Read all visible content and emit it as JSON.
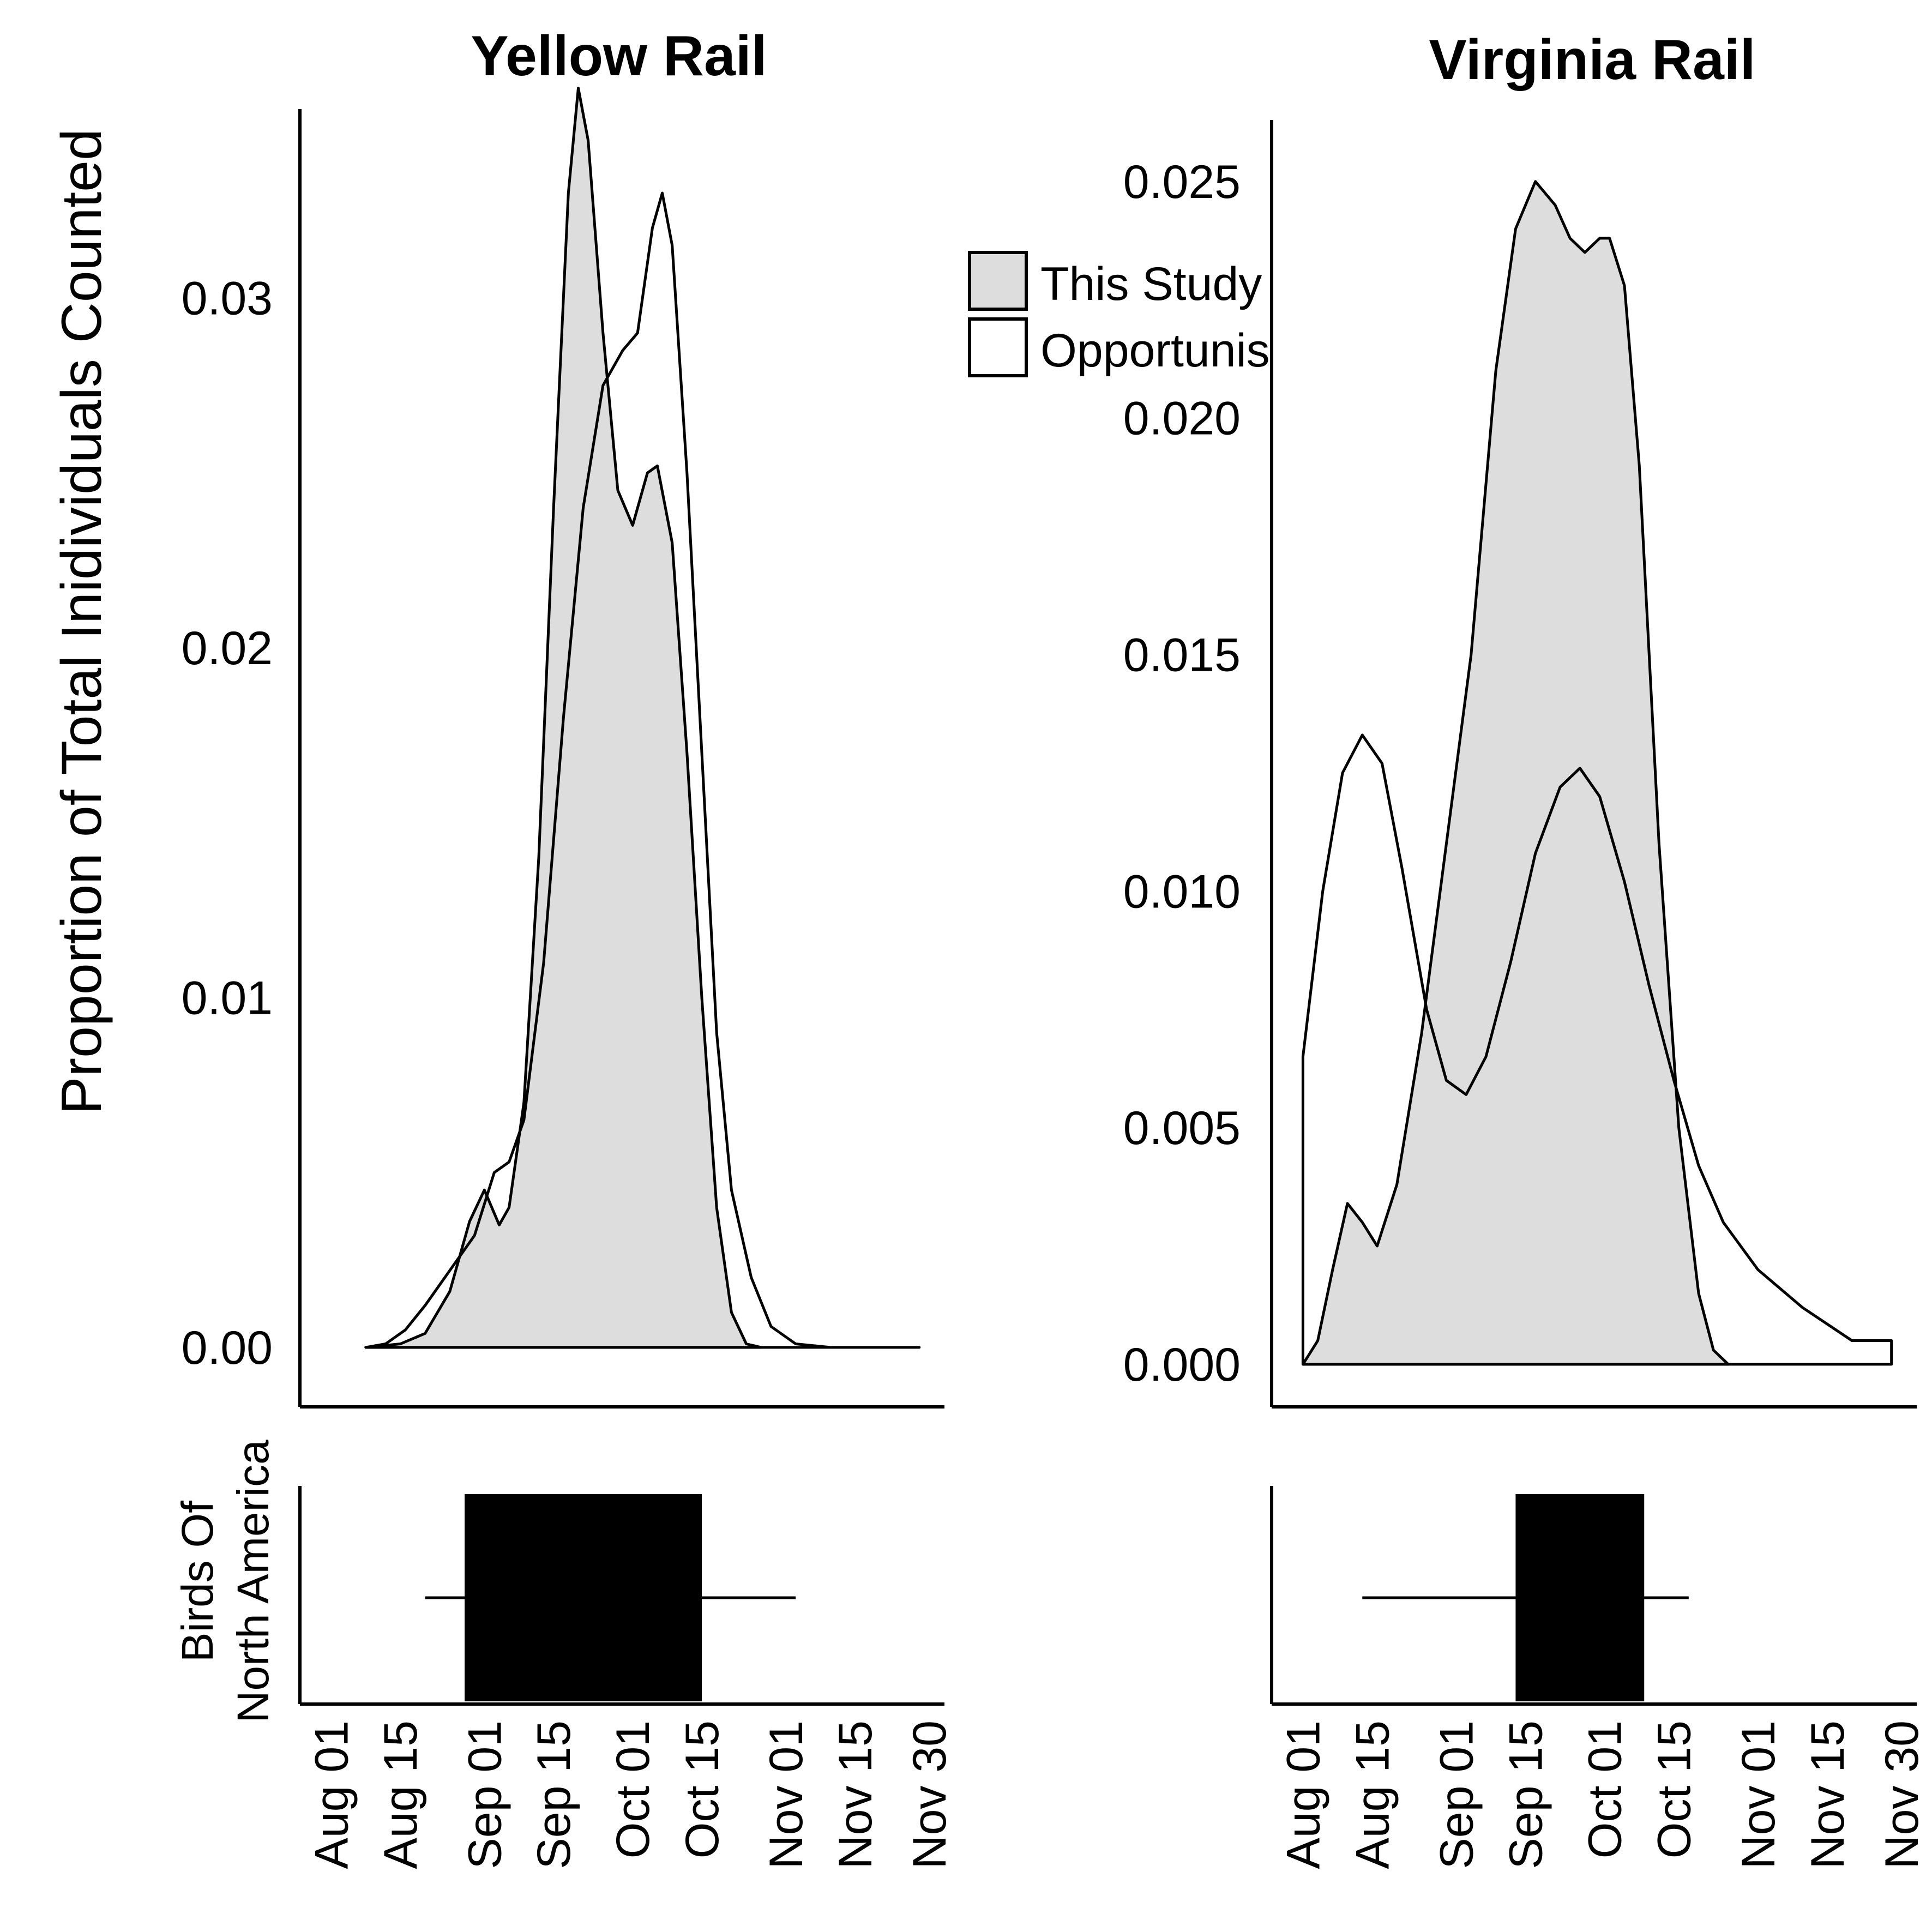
{
  "y_axis_label": "Proportion of Total Inidividuals Counted",
  "box_axis_label_line1": "Birds Of",
  "box_axis_label_line2": "North America",
  "legend": [
    {
      "label": "This Study",
      "fill": "#dddddd"
    },
    {
      "label": "Opportunistic",
      "fill": "#ffffff"
    }
  ],
  "colors": {
    "this_study_fill": "#dddddd",
    "opportunistic_fill": "#ffffff",
    "line": "#000000",
    "box": "#000000"
  },
  "x_tick_labels": [
    "Aug 01",
    "Aug 15",
    "Sep 01",
    "Sep 15",
    "Oct 01",
    "Oct 15",
    "Nov 01",
    "Nov 15",
    "Nov 30"
  ],
  "chart_data": [
    {
      "type": "area",
      "title": "Yellow Rail",
      "ylim": [
        -0.0017,
        0.0354
      ],
      "y_ticks": [
        "0.00",
        "0.01",
        "0.02",
        "0.03"
      ],
      "y_tick_values": [
        0,
        0.01,
        0.02,
        0.03
      ],
      "xlim": [
        "2000-07-26",
        "2000-12-02"
      ],
      "x_ticks": [
        "2000-08-01",
        "2000-08-15",
        "2000-09-01",
        "2000-09-15",
        "2000-10-01",
        "2000-10-15",
        "2000-11-01",
        "2000-11-15",
        "2000-11-30"
      ],
      "series": [
        {
          "name": "This Study",
          "fill": "#dddddd",
          "points": [
            [
              "2000-08-08",
              0
            ],
            [
              "2000-08-15",
              0.0001
            ],
            [
              "2000-08-20",
              0.0004
            ],
            [
              "2000-08-25",
              0.0016
            ],
            [
              "2000-08-29",
              0.0036
            ],
            [
              "2000-09-01",
              0.0045
            ],
            [
              "2000-09-04",
              0.0035
            ],
            [
              "2000-09-06",
              0.004
            ],
            [
              "2000-09-09",
              0.007
            ],
            [
              "2000-09-12",
              0.014
            ],
            [
              "2000-09-15",
              0.024
            ],
            [
              "2000-09-18",
              0.033
            ],
            [
              "2000-09-20",
              0.036
            ],
            [
              "2000-09-22",
              0.0345
            ],
            [
              "2000-09-25",
              0.029
            ],
            [
              "2000-09-28",
              0.0245
            ],
            [
              "2000-10-01",
              0.0235
            ],
            [
              "2000-10-04",
              0.025
            ],
            [
              "2000-10-06",
              0.0252
            ],
            [
              "2000-10-09",
              0.023
            ],
            [
              "2000-10-12",
              0.017
            ],
            [
              "2000-10-15",
              0.01
            ],
            [
              "2000-10-18",
              0.004
            ],
            [
              "2000-10-21",
              0.001
            ],
            [
              "2000-10-24",
              0.0001
            ],
            [
              "2000-10-27",
              0
            ]
          ]
        },
        {
          "name": "Opportunistic",
          "fill": "#ffffff",
          "points": [
            [
              "2000-08-08",
              0
            ],
            [
              "2000-08-12",
              0.0001
            ],
            [
              "2000-08-16",
              0.0005
            ],
            [
              "2000-08-20",
              0.0012
            ],
            [
              "2000-08-25",
              0.0022
            ],
            [
              "2000-08-30",
              0.0032
            ],
            [
              "2000-09-03",
              0.005
            ],
            [
              "2000-09-06",
              0.0053
            ],
            [
              "2000-09-09",
              0.0065
            ],
            [
              "2000-09-13",
              0.011
            ],
            [
              "2000-09-17",
              0.018
            ],
            [
              "2000-09-21",
              0.024
            ],
            [
              "2000-09-25",
              0.0275
            ],
            [
              "2000-09-29",
              0.0285
            ],
            [
              "2000-10-02",
              0.029
            ],
            [
              "2000-10-05",
              0.032
            ],
            [
              "2000-10-07",
              0.033
            ],
            [
              "2000-10-09",
              0.0315
            ],
            [
              "2000-10-12",
              0.025
            ],
            [
              "2000-10-15",
              0.017
            ],
            [
              "2000-10-18",
              0.009
            ],
            [
              "2000-10-21",
              0.0045
            ],
            [
              "2000-10-25",
              0.002
            ],
            [
              "2000-10-29",
              0.0006
            ],
            [
              "2000-11-03",
              0.0001
            ],
            [
              "2000-11-10",
              0
            ],
            [
              "2000-11-28",
              0
            ]
          ]
        }
      ],
      "birds_of_north_america": {
        "whisker_low": "2000-08-20",
        "box_low": "2000-08-28",
        "box_high": "2000-10-15",
        "whisker_high": "2000-11-03"
      }
    },
    {
      "type": "area",
      "title": "Virginia Rail",
      "ylim": [
        -0.0009,
        0.0263
      ],
      "y_ticks": [
        "0.000",
        "0.005",
        "0.010",
        "0.015",
        "0.020",
        "0.025"
      ],
      "y_tick_values": [
        0,
        0.005,
        0.01,
        0.015,
        0.02,
        0.025
      ],
      "xlim": [
        "2000-07-26",
        "2000-12-02"
      ],
      "x_ticks": [
        "2000-08-01",
        "2000-08-15",
        "2000-09-01",
        "2000-09-15",
        "2000-10-01",
        "2000-10-15",
        "2000-11-01",
        "2000-11-15",
        "2000-11-30"
      ],
      "series": [
        {
          "name": "This Study",
          "fill": "#dddddd",
          "points": [
            [
              "2000-08-01",
              0
            ],
            [
              "2000-08-04",
              0.0005
            ],
            [
              "2000-08-07",
              0.002
            ],
            [
              "2000-08-10",
              0.0034
            ],
            [
              "2000-08-13",
              0.003
            ],
            [
              "2000-08-16",
              0.0025
            ],
            [
              "2000-08-20",
              0.0038
            ],
            [
              "2000-08-25",
              0.007
            ],
            [
              "2000-08-30",
              0.011
            ],
            [
              "2000-09-04",
              0.015
            ],
            [
              "2000-09-09",
              0.021
            ],
            [
              "2000-09-13",
              0.024
            ],
            [
              "2000-09-17",
              0.025
            ],
            [
              "2000-09-21",
              0.0245
            ],
            [
              "2000-09-24",
              0.0238
            ],
            [
              "2000-09-27",
              0.0235
            ],
            [
              "2000-09-30",
              0.0238
            ],
            [
              "2000-10-02",
              0.0238
            ],
            [
              "2000-10-05",
              0.0228
            ],
            [
              "2000-10-08",
              0.019
            ],
            [
              "2000-10-12",
              0.011
            ],
            [
              "2000-10-16",
              0.005
            ],
            [
              "2000-10-20",
              0.0015
            ],
            [
              "2000-10-23",
              0.0003
            ],
            [
              "2000-10-26",
              0
            ]
          ]
        },
        {
          "name": "Opportunistic",
          "fill": "#ffffff",
          "points": [
            [
              "2000-08-01",
              0.0065
            ],
            [
              "2000-08-05",
              0.01
            ],
            [
              "2000-08-09",
              0.0125
            ],
            [
              "2000-08-13",
              0.0133
            ],
            [
              "2000-08-17",
              0.0127
            ],
            [
              "2000-08-21",
              0.0105
            ],
            [
              "2000-08-26",
              0.0075
            ],
            [
              "2000-08-30",
              0.006
            ],
            [
              "2000-09-03",
              0.0057
            ],
            [
              "2000-09-07",
              0.0065
            ],
            [
              "2000-09-12",
              0.0085
            ],
            [
              "2000-09-17",
              0.0108
            ],
            [
              "2000-09-22",
              0.0122
            ],
            [
              "2000-09-26",
              0.0126
            ],
            [
              "2000-09-30",
              0.012
            ],
            [
              "2000-10-05",
              0.0102
            ],
            [
              "2000-10-10",
              0.008
            ],
            [
              "2000-10-15",
              0.006
            ],
            [
              "2000-10-20",
              0.0042
            ],
            [
              "2000-10-25",
              0.003
            ],
            [
              "2000-11-01",
              0.002
            ],
            [
              "2000-11-10",
              0.0012
            ],
            [
              "2000-11-20",
              0.0005
            ],
            [
              "2000-11-28",
              0.0005
            ]
          ]
        }
      ],
      "birds_of_north_america": {
        "whisker_low": "2000-08-13",
        "box_low": "2000-09-13",
        "box_high": "2000-10-09",
        "whisker_high": "2000-10-18"
      }
    }
  ]
}
